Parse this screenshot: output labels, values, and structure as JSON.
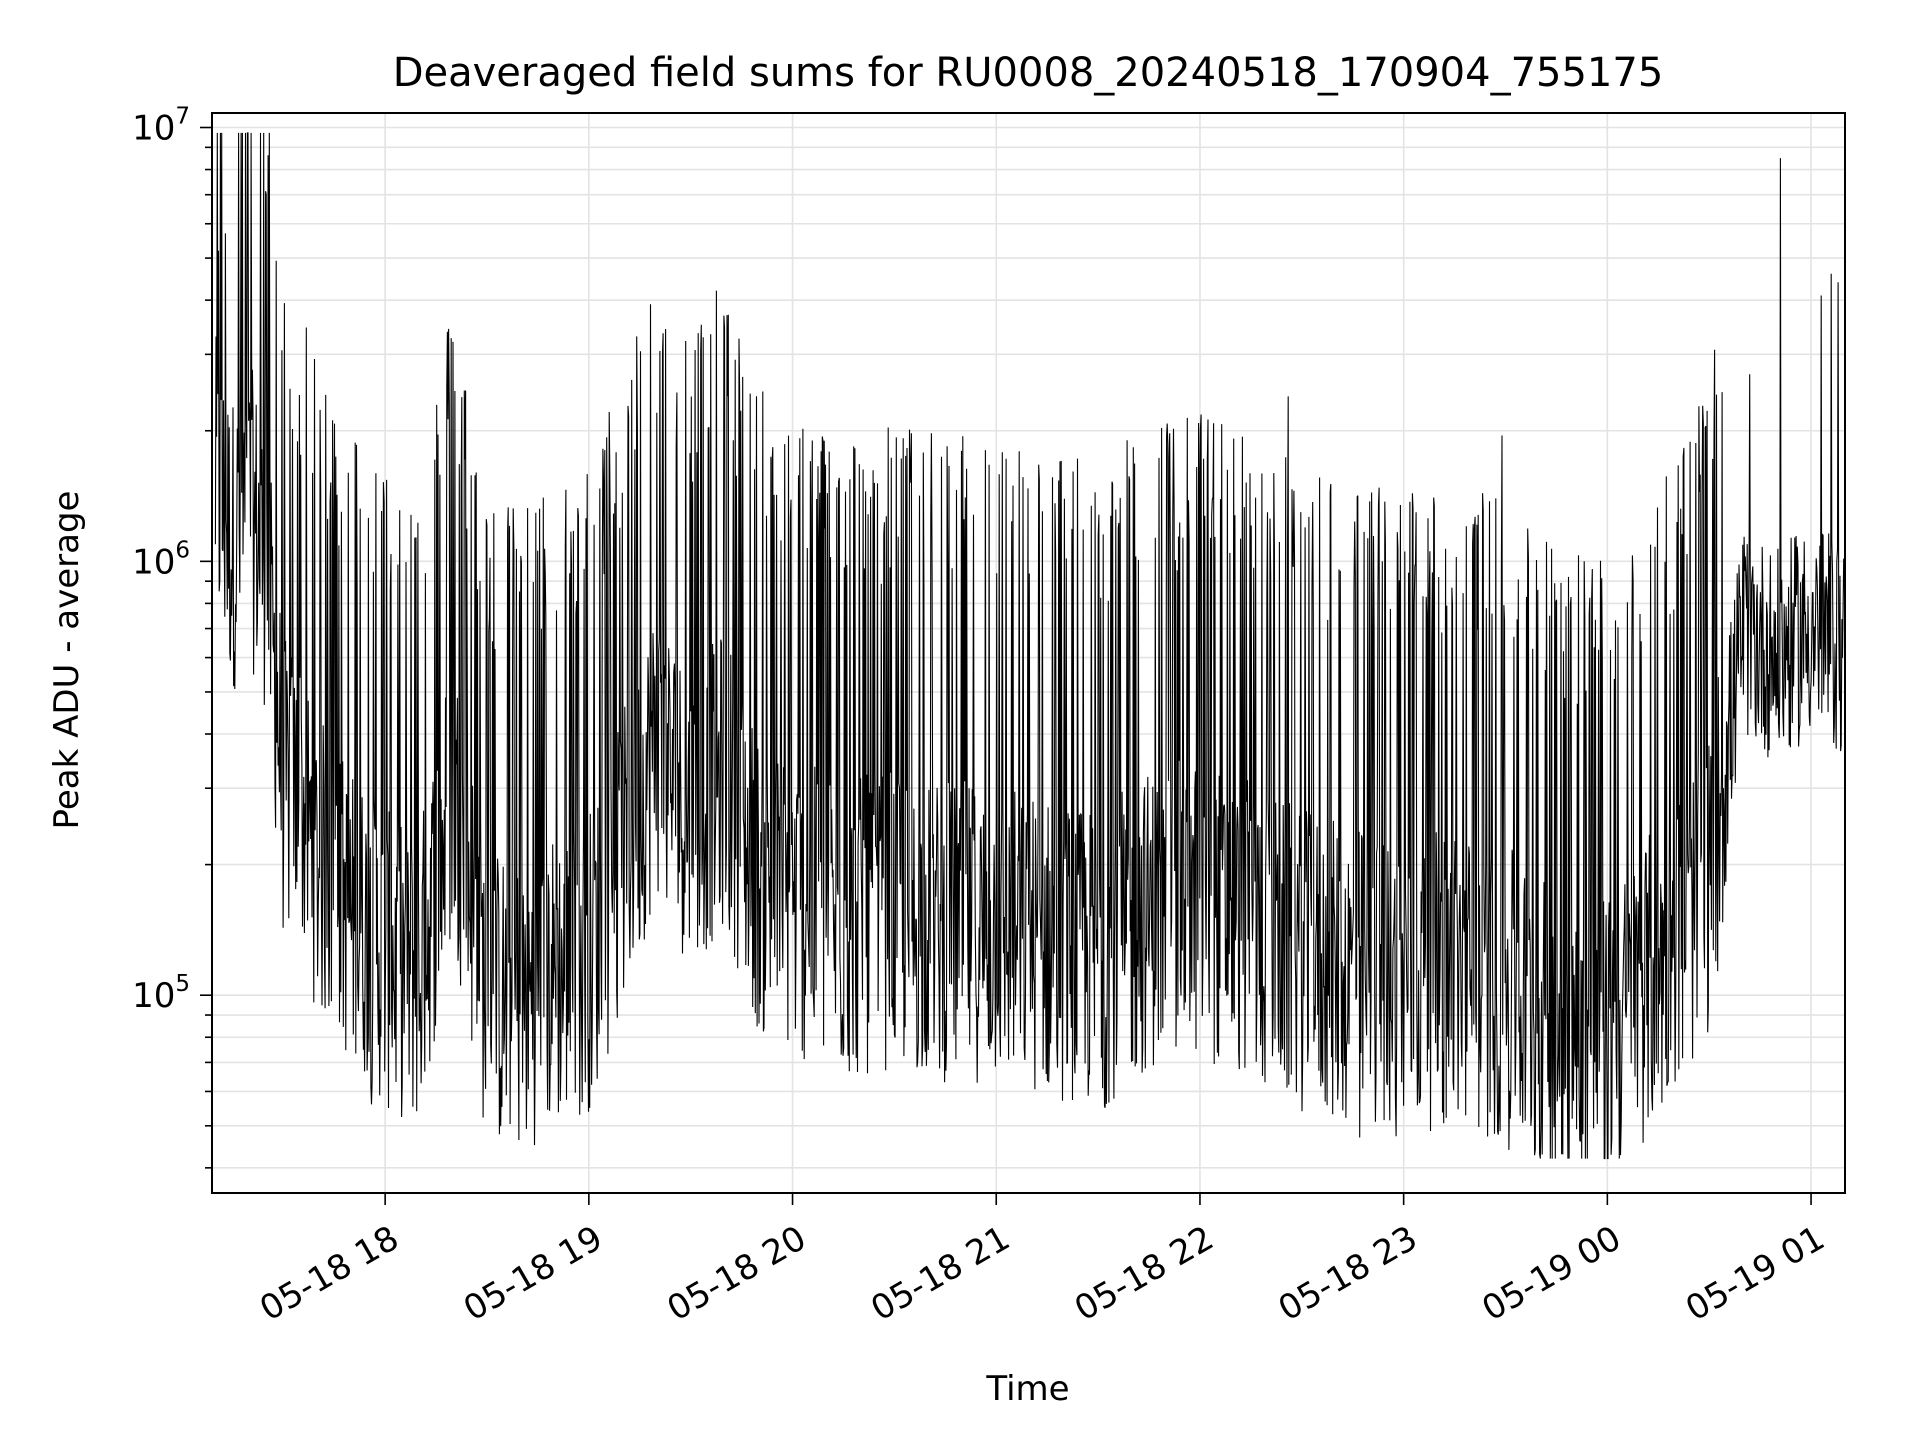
{
  "chart_data": {
    "type": "line",
    "title": "Deaveraged field sums for RU0008_20240518_170904_755175",
    "xlabel": "Time",
    "ylabel": "Peak ADU - average",
    "yscale": "log",
    "ylim": [
      35000,
      10800000
    ],
    "xlim": [
      "2024-05-18 17:09:00",
      "2024-05-19 01:10:00"
    ],
    "grid": true,
    "x_ticks": [
      {
        "t": "2024-05-18 18:00",
        "label": "05-18 18"
      },
      {
        "t": "2024-05-18 19:00",
        "label": "05-18 19"
      },
      {
        "t": "2024-05-18 20:00",
        "label": "05-18 20"
      },
      {
        "t": "2024-05-18 21:00",
        "label": "05-18 21"
      },
      {
        "t": "2024-05-18 22:00",
        "label": "05-18 22"
      },
      {
        "t": "2024-05-18 23:00",
        "label": "05-18 23"
      },
      {
        "t": "2024-05-19 00:00",
        "label": "05-19 00"
      },
      {
        "t": "2024-05-19 01:00",
        "label": "05-19 01"
      }
    ],
    "y_ticks": [
      {
        "value": 100000,
        "base": "10",
        "exp": "5"
      },
      {
        "value": 1000000,
        "base": "10",
        "exp": "6"
      },
      {
        "value": 10000000,
        "base": "10",
        "exp": "7"
      }
    ],
    "series": [
      {
        "color": "#000000",
        "x": [
          "2024-05-18 17:10",
          "2024-05-18 17:15",
          "2024-05-18 17:20",
          "2024-05-18 17:25",
          "2024-05-18 17:30",
          "2024-05-18 17:35",
          "2024-05-18 17:40",
          "2024-05-18 17:45",
          "2024-05-18 17:50",
          "2024-05-18 17:55",
          "2024-05-18 18:00",
          "2024-05-18 18:10",
          "2024-05-18 18:20",
          "2024-05-18 18:30",
          "2024-05-18 18:40",
          "2024-05-18 18:50",
          "2024-05-18 19:00",
          "2024-05-18 19:10",
          "2024-05-18 19:20",
          "2024-05-18 19:30",
          "2024-05-18 19:40",
          "2024-05-18 19:50",
          "2024-05-18 20:00",
          "2024-05-18 20:15",
          "2024-05-18 20:30",
          "2024-05-18 20:45",
          "2024-05-18 21:00",
          "2024-05-18 21:15",
          "2024-05-18 21:30",
          "2024-05-18 21:45",
          "2024-05-18 22:00",
          "2024-05-18 22:15",
          "2024-05-18 22:30",
          "2024-05-18 22:45",
          "2024-05-18 23:00",
          "2024-05-18 23:15",
          "2024-05-18 23:30",
          "2024-05-18 23:45",
          "2024-05-19 00:00",
          "2024-05-19 00:10",
          "2024-05-19 00:20",
          "2024-05-19 00:30",
          "2024-05-19 00:40",
          "2024-05-19 00:50",
          "2024-05-19 01:00",
          "2024-05-19 01:10"
        ],
        "y": [
          1500000,
          1100000,
          1300000,
          1000000,
          300000,
          280000,
          200000,
          180000,
          150000,
          140000,
          120000,
          110000,
          300000,
          100000,
          95000,
          110000,
          120000,
          200000,
          380000,
          250000,
          320000,
          180000,
          160000,
          140000,
          150000,
          140000,
          140000,
          130000,
          120000,
          150000,
          160000,
          140000,
          120000,
          110000,
          105000,
          110000,
          100000,
          80000,
          75000,
          100000,
          130000,
          180000,
          700000,
          600000,
          700000,
          620000
        ],
        "spikes": [
          {
            "t": "2024-05-18 17:11",
            "value": 5200000
          },
          {
            "t": "2024-05-18 17:13",
            "value": 5700000
          },
          {
            "t": "2024-05-18 17:32",
            "value": 2500000
          },
          {
            "t": "2024-05-18 19:20",
            "value": 2200000
          },
          {
            "t": "2024-05-18 22:26",
            "value": 2400000
          },
          {
            "t": "2024-05-18 23:29",
            "value": 1950000
          },
          {
            "t": "2024-05-19 00:29",
            "value": 2050000
          },
          {
            "t": "2024-05-19 00:42",
            "value": 2700000
          },
          {
            "t": "2024-05-19 00:51",
            "value": 8500000
          },
          {
            "t": "2024-05-19 01:03",
            "value": 4100000
          },
          {
            "t": "2024-05-19 01:06",
            "value": 4600000
          },
          {
            "t": "2024-05-19 01:08",
            "value": 4400000
          }
        ],
        "dips": [
          {
            "t": "2024-05-18 22:47",
            "value": 47000
          },
          {
            "t": "2024-05-18 23:31",
            "value": 44000
          },
          {
            "t": "2024-05-18 23:52",
            "value": 46000
          },
          {
            "t": "2024-05-18 17:56",
            "value": 56000
          },
          {
            "t": "2024-05-18 21:32",
            "value": 55000
          }
        ]
      }
    ]
  }
}
